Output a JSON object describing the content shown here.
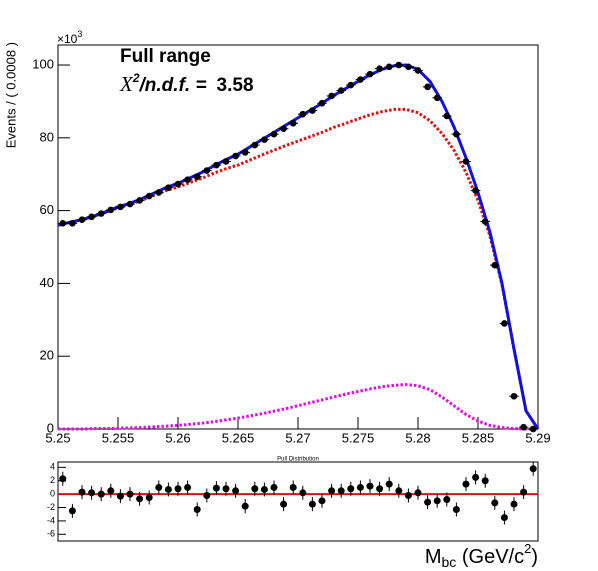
{
  "chart_data": [
    {
      "type": "scatter",
      "label_main": "Full range",
      "chi2_symbol": "X",
      "chi2_sup": "2",
      "chi2_rest": "/n.d.f. =",
      "chi2_value": 3.58,
      "y_label": "Events / ( 0.0008 )",
      "y_scale_base": "×10",
      "y_scale_power": "3",
      "x_label_main": "M",
      "x_label_sub": "bc",
      "x_label_unit": " (GeV/c",
      "x_label_sup": "2",
      "x_label_end": ")",
      "xlim": [
        5.25,
        5.29
      ],
      "ylim": [
        0,
        105.5
      ],
      "xticks": [
        5.25,
        5.255,
        5.26,
        5.265,
        5.27,
        5.275,
        5.28,
        5.285,
        5.29
      ],
      "yticks": [
        0,
        20,
        40,
        60,
        80,
        100
      ],
      "series": [
        {
          "style": "points",
          "color": "#000000",
          "x": [
            5.2504,
            5.2512,
            5.252,
            5.2528,
            5.2536,
            5.2544,
            5.2552,
            5.256,
            5.2568,
            5.2576,
            5.2584,
            5.2592,
            5.26,
            5.2608,
            5.2616,
            5.2624,
            5.2632,
            5.264,
            5.2648,
            5.2656,
            5.2664,
            5.2672,
            5.268,
            5.2688,
            5.2696,
            5.2704,
            5.2712,
            5.272,
            5.2728,
            5.2736,
            5.2744,
            5.2752,
            5.276,
            5.2768,
            5.2776,
            5.2784,
            5.2792,
            5.28,
            5.2808,
            5.2816,
            5.2824,
            5.2832,
            5.284,
            5.2848,
            5.2856,
            5.2864,
            5.2872,
            5.288,
            5.2888,
            5.2896
          ],
          "values": [
            56.5,
            56.5,
            57.5,
            58.3,
            59.2,
            60.2,
            61,
            61.8,
            62.8,
            64,
            65,
            66.3,
            67.3,
            68.5,
            69.3,
            71,
            72.5,
            73.5,
            75,
            76,
            78,
            79.5,
            81,
            82.5,
            84,
            86.5,
            87.5,
            89.5,
            91.5,
            93,
            94.5,
            96,
            97.5,
            99,
            99.5,
            100,
            99.5,
            98.5,
            94,
            91,
            86,
            81,
            73.5,
            65.5,
            57,
            45,
            29,
            9,
            0.5,
            0
          ]
        },
        {
          "style": "solid",
          "color": "#1010e0",
          "x": [
            5.25,
            5.251,
            5.252,
            5.253,
            5.254,
            5.255,
            5.256,
            5.257,
            5.258,
            5.259,
            5.26,
            5.261,
            5.262,
            5.263,
            5.264,
            5.265,
            5.266,
            5.267,
            5.268,
            5.269,
            5.27,
            5.271,
            5.272,
            5.273,
            5.274,
            5.275,
            5.276,
            5.277,
            5.278,
            5.279,
            5.28,
            5.281,
            5.282,
            5.283,
            5.284,
            5.285,
            5.286,
            5.287,
            5.288,
            5.289,
            5.29
          ],
          "values": [
            56,
            56.8,
            57.5,
            58.5,
            59.7,
            61,
            62,
            63.3,
            64.8,
            66.3,
            67.5,
            69,
            70.5,
            72.3,
            74,
            75.5,
            77.5,
            79.5,
            81.5,
            83.5,
            85.5,
            87.5,
            89.5,
            91.7,
            93.6,
            95.5,
            97.3,
            98.8,
            99.8,
            100,
            98.8,
            95.5,
            90,
            83,
            74.5,
            65,
            54,
            40,
            22,
            5,
            0
          ]
        },
        {
          "style": "dotted",
          "color": "#e01010",
          "x": [
            5.25,
            5.251,
            5.252,
            5.253,
            5.254,
            5.255,
            5.256,
            5.257,
            5.258,
            5.259,
            5.26,
            5.261,
            5.262,
            5.263,
            5.264,
            5.265,
            5.266,
            5.267,
            5.268,
            5.269,
            5.27,
            5.271,
            5.272,
            5.273,
            5.274,
            5.275,
            5.276,
            5.277,
            5.278,
            5.279,
            5.28,
            5.281,
            5.282,
            5.283,
            5.284,
            5.285,
            5.286,
            5.287,
            5.288,
            5.289,
            5.29
          ],
          "values": [
            56,
            56.8,
            57.5,
            58.4,
            59.6,
            60.8,
            61.7,
            62.9,
            64.2,
            65.5,
            66.5,
            67.7,
            68.9,
            70.3,
            71.5,
            72.5,
            73.9,
            75.3,
            76.6,
            77.9,
            79.1,
            80.3,
            81.5,
            82.9,
            84,
            85.2,
            86.3,
            87.2,
            87.8,
            87.8,
            86.9,
            84.7,
            81.2,
            76.6,
            70.5,
            62.8,
            53,
            39.6,
            21.9,
            5,
            0
          ]
        },
        {
          "style": "dotted",
          "color": "#e010e0",
          "x": [
            5.25,
            5.251,
            5.252,
            5.253,
            5.254,
            5.255,
            5.256,
            5.257,
            5.258,
            5.259,
            5.26,
            5.261,
            5.262,
            5.263,
            5.264,
            5.265,
            5.266,
            5.267,
            5.268,
            5.269,
            5.27,
            5.271,
            5.272,
            5.273,
            5.274,
            5.275,
            5.276,
            5.277,
            5.278,
            5.279,
            5.28,
            5.281,
            5.282,
            5.283,
            5.284,
            5.285,
            5.286,
            5.287,
            5.288,
            5.289,
            5.29
          ],
          "values": [
            0,
            0,
            0,
            0.1,
            0.1,
            0.2,
            0.3,
            0.4,
            0.6,
            0.8,
            1,
            1.3,
            1.6,
            2,
            2.5,
            3,
            3.6,
            4.2,
            4.9,
            5.6,
            6.4,
            7.2,
            8,
            8.8,
            9.6,
            10.3,
            11,
            11.6,
            12,
            12.2,
            11.9,
            10.8,
            8.8,
            6.4,
            4,
            2.2,
            1,
            0.4,
            0.1,
            0,
            0
          ]
        }
      ]
    },
    {
      "type": "scatter",
      "title": "Pull Distribution",
      "color": "#000000",
      "line_color": "#e01010",
      "xlim": [
        5.25,
        5.29
      ],
      "ylim": [
        -7,
        4.8
      ],
      "yticks": [
        -6,
        -4,
        -2,
        0,
        2,
        4
      ],
      "x": [
        5.2504,
        5.2512,
        5.252,
        5.2528,
        5.2536,
        5.2544,
        5.2552,
        5.256,
        5.2568,
        5.2576,
        5.2584,
        5.2592,
        5.26,
        5.2608,
        5.2616,
        5.2624,
        5.2632,
        5.264,
        5.2648,
        5.2656,
        5.2664,
        5.2672,
        5.268,
        5.2688,
        5.2696,
        5.2704,
        5.2712,
        5.272,
        5.2728,
        5.2736,
        5.2744,
        5.2752,
        5.276,
        5.2768,
        5.2776,
        5.2784,
        5.2792,
        5.28,
        5.2808,
        5.2816,
        5.2824,
        5.2832,
        5.284,
        5.2848,
        5.2856,
        5.2864,
        5.2872,
        5.288,
        5.2888,
        5.2896
      ],
      "values": [
        2.3,
        -2.5,
        0.3,
        0.2,
        0,
        0.5,
        -0.3,
        0,
        -0.7,
        -0.5,
        1,
        0.7,
        0.8,
        1,
        -2.3,
        -0.2,
        0.9,
        0.8,
        0.5,
        -1.8,
        0.8,
        0.7,
        1,
        -1.5,
        1,
        0.2,
        -1.5,
        -1,
        0.5,
        0.5,
        0.8,
        1,
        1.2,
        0.8,
        1.5,
        0.5,
        -0.2,
        0.2,
        -1.2,
        -1,
        -0.8,
        -2.3,
        1.5,
        2.5,
        2,
        -1.3,
        -3.5,
        -1.5,
        0.3,
        3.8
      ]
    }
  ]
}
